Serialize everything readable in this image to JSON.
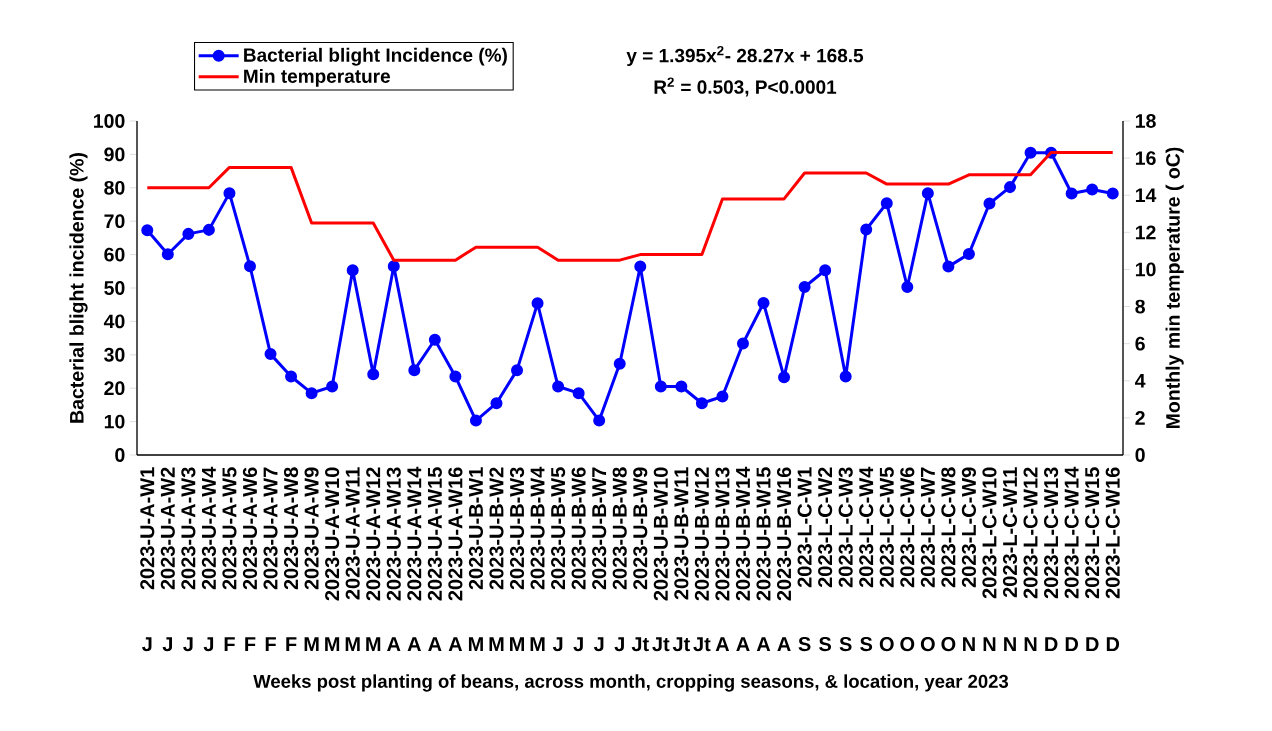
{
  "chart_data": {
    "type": "line",
    "categories": [
      "2023-U-A-W1",
      "2023-U-A-W2",
      "2023-U-A-W3",
      "2023-U-A-W4",
      "2023-U-A-W5",
      "2023-U-A-W6",
      "2023-U-A-W7",
      "2023-U-A-W8",
      "2023-U-A-W9",
      "2023-U-A-W10",
      "2023-U-A-W11",
      "2023-U-A-W12",
      "2023-U-A-W13",
      "2023-U-A-W14",
      "2023-U-A-W15",
      "2023-U-A-W16",
      "2023-U-B-W1",
      "2023-U-B-W2",
      "2023-U-B-W3",
      "2023-U-B-W4",
      "2023-U-B-W5",
      "2023-U-B-W6",
      "2023-U-B-W7",
      "2023-U-B-W8",
      "2023-U-B-W9",
      "2023-U-B-W10",
      "2023-U-B-W11",
      "2023-U-B-W12",
      "2023-U-B-W13",
      "2023-U-B-W14",
      "2023-U-B-W15",
      "2023-U-B-W16",
      "2023-L-C-W1",
      "2023-L-C-W2",
      "2023-L-C-W3",
      "2023-L-C-W4",
      "2023-L-C-W5",
      "2023-L-C-W6",
      "2023-L-C-W7",
      "2023-L-C-W8",
      "2023-L-C-W9",
      "2023-L-C-W10",
      "2023-L-C-W11",
      "2023-L-C-W12",
      "2023-L-C-W13",
      "2023-L-C-W14",
      "2023-L-C-W15",
      "2023-L-C-W16"
    ],
    "series": [
      {
        "name": "Bacterial  blight Incidence (%)",
        "color": "#0000ff",
        "marker": "circle",
        "values": [
          67.3,
          60.1,
          66.2,
          67.4,
          78.4,
          56.5,
          30.2,
          23.5,
          18.5,
          20.5,
          55.3,
          24.2,
          56.5,
          25.4,
          34.5,
          23.5,
          10.3,
          15.5,
          25.4,
          45.4,
          20.5,
          18.5,
          10.3,
          27.3,
          56.4,
          20.5,
          20.5,
          15.5,
          17.5,
          33.4,
          45.5,
          23.3,
          50.3,
          55.3,
          23.5,
          67.5,
          75.4,
          50.3,
          78.4,
          56.4,
          60.2,
          75.3,
          80.2,
          90.5,
          90.5,
          78.3,
          79.5,
          78.3
        ]
      },
      {
        "name": "Min temperature",
        "color": "#ff0000",
        "marker": "none",
        "axis": "y2",
        "values": [
          14.4,
          14.4,
          14.4,
          14.4,
          15.5,
          15.5,
          15.5,
          15.5,
          12.5,
          12.5,
          12.5,
          12.5,
          10.5,
          10.5,
          10.5,
          10.5,
          11.2,
          11.2,
          11.2,
          11.2,
          10.5,
          10.5,
          10.5,
          10.5,
          10.8,
          10.8,
          10.8,
          10.8,
          13.8,
          13.8,
          13.8,
          13.8,
          15.2,
          15.2,
          15.2,
          15.2,
          14.6,
          14.6,
          14.6,
          14.6,
          15.1,
          15.1,
          15.1,
          15.1,
          16.3,
          16.3,
          16.3,
          16.3
        ]
      }
    ],
    "ylim": [
      0,
      100
    ],
    "yticks": [
      0,
      10,
      20,
      30,
      40,
      50,
      60,
      70,
      80,
      90,
      100
    ],
    "y2lim": [
      0,
      18
    ],
    "y2ticks": [
      0,
      2,
      4,
      6,
      8,
      10,
      12,
      14,
      16,
      18
    ],
    "ylabel": "Bacterial blight incidence (%)",
    "y2label": "Monthly min temperature ( oC)",
    "xlabel": "Weeks post planting of beans,  across month, cropping seasons, & location, year 2023",
    "legend": "top left",
    "annotations": [
      "y = 1.395x$^{2}$- 28.27x + 168.5",
      "R$^{2}$ = 0.503,  P<0.0001",
      "J",
      "J",
      "J",
      "J",
      "F",
      "F",
      "F",
      "F",
      "M",
      "M",
      "M",
      "M",
      "A",
      "A",
      "A",
      "A",
      "M",
      "M",
      "M",
      "M",
      "J",
      "J",
      "J",
      "J",
      "Jt",
      "Jt",
      "Jt",
      "Jt",
      "A",
      "A",
      "A",
      "A",
      "S",
      "S",
      "S",
      "S",
      "O",
      "O",
      "O",
      "O",
      "N",
      "N",
      "N",
      "N",
      "D",
      "D",
      "D",
      "D"
    ]
  }
}
